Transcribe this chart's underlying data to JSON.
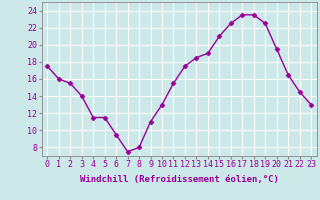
{
  "x": [
    0,
    1,
    2,
    3,
    4,
    5,
    6,
    7,
    8,
    9,
    10,
    11,
    12,
    13,
    14,
    15,
    16,
    17,
    18,
    19,
    20,
    21,
    22,
    23
  ],
  "y": [
    17.5,
    16.0,
    15.5,
    14.0,
    11.5,
    11.5,
    9.5,
    7.5,
    8.0,
    11.0,
    13.0,
    15.5,
    17.5,
    18.5,
    19.0,
    21.0,
    22.5,
    23.5,
    23.5,
    22.5,
    19.5,
    16.5,
    14.5,
    13.0
  ],
  "line_color": "#990099",
  "marker": "D",
  "markersize": 2.5,
  "linewidth": 1.0,
  "bg_color": "#cce8e8",
  "grid_color": "#ffffff",
  "xlabel": "Windchill (Refroidissement éolien,°C)",
  "xlabel_fontsize": 6.5,
  "xtick_labels": [
    "0",
    "1",
    "2",
    "3",
    "4",
    "5",
    "6",
    "7",
    "8",
    "9",
    "10",
    "11",
    "12",
    "13",
    "14",
    "15",
    "16",
    "17",
    "18",
    "19",
    "20",
    "21",
    "22",
    "23"
  ],
  "yticks": [
    8,
    10,
    12,
    14,
    16,
    18,
    20,
    22,
    24
  ],
  "ylim": [
    7,
    25
  ],
  "xlim": [
    -0.5,
    23.5
  ],
  "tick_color": "#990099",
  "tick_fontsize": 6.0,
  "spine_color": "#888888"
}
